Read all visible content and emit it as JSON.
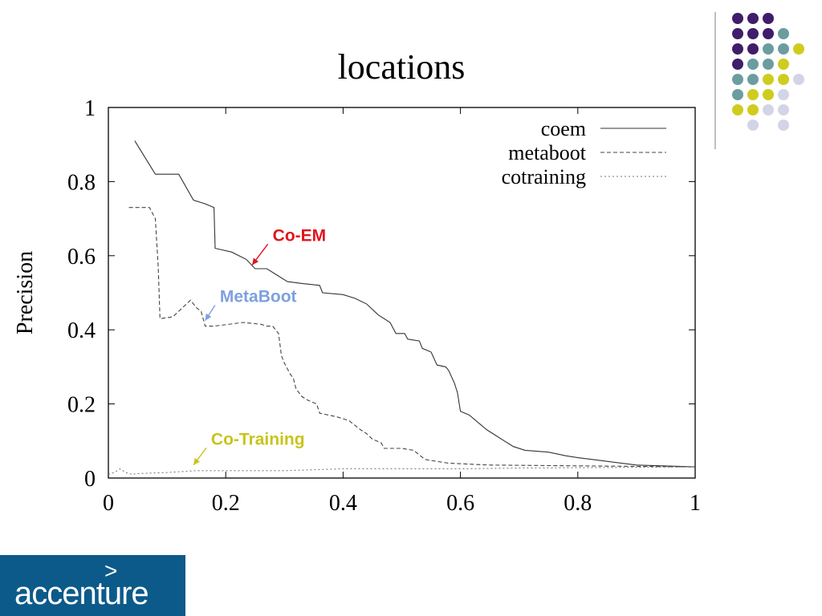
{
  "slide": {
    "brand_logo_text": "accenture",
    "brand_logo_mark": ">",
    "decor_colors": {
      "purple": "#3f1d6b",
      "teal": "#6b9da0",
      "yellow": "#cfcc1f",
      "lavender": "#d4d4e8",
      "rule": "#a8a8a8",
      "logo_bg": "#0b5a8a"
    }
  },
  "chart_data": {
    "type": "line",
    "title": "locations",
    "xlabel": "",
    "ylabel": "Precision",
    "xlim": [
      0,
      1
    ],
    "ylim": [
      0,
      1
    ],
    "xticks": [
      0,
      0.2,
      0.4,
      0.6,
      0.8,
      1
    ],
    "yticks": [
      0,
      0.2,
      0.4,
      0.6,
      0.8,
      1
    ],
    "xtick_labels": [
      "0",
      "0.2",
      "0.4",
      "0.6",
      "0.8",
      "1"
    ],
    "ytick_labels": [
      "0",
      "0.2",
      "0.4",
      "0.6",
      "0.8",
      "1"
    ],
    "grid": false,
    "legend_position": "top-right",
    "series": [
      {
        "name": "coem",
        "color": "#333333",
        "dash": "solid",
        "points": [
          [
            0.045,
            0.91
          ],
          [
            0.08,
            0.82
          ],
          [
            0.12,
            0.82
          ],
          [
            0.145,
            0.75
          ],
          [
            0.165,
            0.74
          ],
          [
            0.18,
            0.73
          ],
          [
            0.182,
            0.62
          ],
          [
            0.21,
            0.61
          ],
          [
            0.235,
            0.59
          ],
          [
            0.25,
            0.565
          ],
          [
            0.27,
            0.565
          ],
          [
            0.285,
            0.55
          ],
          [
            0.305,
            0.53
          ],
          [
            0.33,
            0.525
          ],
          [
            0.36,
            0.52
          ],
          [
            0.365,
            0.5
          ],
          [
            0.4,
            0.495
          ],
          [
            0.42,
            0.485
          ],
          [
            0.44,
            0.47
          ],
          [
            0.46,
            0.44
          ],
          [
            0.48,
            0.42
          ],
          [
            0.49,
            0.39
          ],
          [
            0.505,
            0.39
          ],
          [
            0.51,
            0.375
          ],
          [
            0.53,
            0.37
          ],
          [
            0.535,
            0.35
          ],
          [
            0.55,
            0.34
          ],
          [
            0.56,
            0.305
          ],
          [
            0.575,
            0.3
          ],
          [
            0.58,
            0.29
          ],
          [
            0.59,
            0.255
          ],
          [
            0.595,
            0.23
          ],
          [
            0.6,
            0.18
          ],
          [
            0.615,
            0.17
          ],
          [
            0.63,
            0.15
          ],
          [
            0.645,
            0.13
          ],
          [
            0.66,
            0.115
          ],
          [
            0.675,
            0.1
          ],
          [
            0.69,
            0.085
          ],
          [
            0.71,
            0.075
          ],
          [
            0.75,
            0.07
          ],
          [
            0.78,
            0.06
          ],
          [
            0.8,
            0.055
          ],
          [
            0.85,
            0.045
          ],
          [
            0.9,
            0.035
          ],
          [
            1.0,
            0.03
          ]
        ]
      },
      {
        "name": "metaboot",
        "color": "#444444",
        "dash": "dashed",
        "points": [
          [
            0.035,
            0.73
          ],
          [
            0.07,
            0.73
          ],
          [
            0.08,
            0.7
          ],
          [
            0.085,
            0.57
          ],
          [
            0.088,
            0.43
          ],
          [
            0.11,
            0.435
          ],
          [
            0.14,
            0.48
          ],
          [
            0.15,
            0.46
          ],
          [
            0.158,
            0.45
          ],
          [
            0.165,
            0.41
          ],
          [
            0.18,
            0.41
          ],
          [
            0.23,
            0.42
          ],
          [
            0.26,
            0.415
          ],
          [
            0.27,
            0.41
          ],
          [
            0.28,
            0.41
          ],
          [
            0.29,
            0.39
          ],
          [
            0.295,
            0.33
          ],
          [
            0.3,
            0.31
          ],
          [
            0.31,
            0.28
          ],
          [
            0.315,
            0.27
          ],
          [
            0.32,
            0.24
          ],
          [
            0.33,
            0.22
          ],
          [
            0.34,
            0.21
          ],
          [
            0.355,
            0.2
          ],
          [
            0.36,
            0.175
          ],
          [
            0.39,
            0.165
          ],
          [
            0.41,
            0.155
          ],
          [
            0.43,
            0.13
          ],
          [
            0.44,
            0.12
          ],
          [
            0.45,
            0.105
          ],
          [
            0.465,
            0.095
          ],
          [
            0.47,
            0.08
          ],
          [
            0.5,
            0.08
          ],
          [
            0.52,
            0.075
          ],
          [
            0.54,
            0.05
          ],
          [
            0.56,
            0.045
          ],
          [
            0.58,
            0.04
          ],
          [
            0.65,
            0.035
          ],
          [
            0.8,
            0.033
          ],
          [
            1.0,
            0.03
          ]
        ]
      },
      {
        "name": "cotraining",
        "color": "#777777",
        "dash": "dotted",
        "points": [
          [
            0.0,
            0.01
          ],
          [
            0.01,
            0.015
          ],
          [
            0.02,
            0.025
          ],
          [
            0.03,
            0.015
          ],
          [
            0.04,
            0.01
          ],
          [
            0.05,
            0.012
          ],
          [
            0.1,
            0.015
          ],
          [
            0.15,
            0.02
          ],
          [
            0.2,
            0.02
          ],
          [
            0.3,
            0.02
          ],
          [
            0.4,
            0.025
          ],
          [
            0.5,
            0.025
          ],
          [
            0.6,
            0.025
          ],
          [
            0.7,
            0.027
          ],
          [
            0.8,
            0.028
          ],
          [
            1.0,
            0.03
          ]
        ]
      }
    ],
    "annotations": [
      {
        "text": "Co-EM",
        "color": "#e0141e",
        "target": [
          0.245,
          0.575
        ],
        "text_at": [
          0.28,
          0.64
        ]
      },
      {
        "text": "MetaBoot",
        "color": "#7ea0e0",
        "target": [
          0.165,
          0.425
        ],
        "text_at": [
          0.19,
          0.475
        ]
      },
      {
        "text": "Co-Training",
        "color": "#c8c41a",
        "target": [
          0.145,
          0.035
        ],
        "text_at": [
          0.175,
          0.09
        ]
      }
    ]
  }
}
